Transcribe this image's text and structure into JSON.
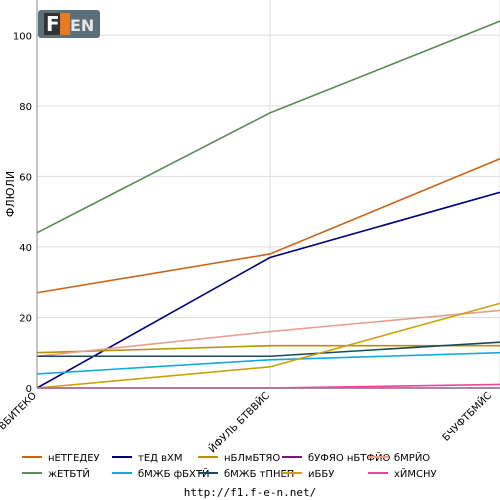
{
  "logo": {
    "text": "F1EN"
  },
  "chart_data": {
    "type": "line",
    "title": "",
    "xlabel": "",
    "ylabel": "ФЛЮЛИ",
    "categories": [
      "ВБИТЕКО",
      "ЙФУЛЬ БТВВЙС",
      "БЧУФТБМЙС"
    ],
    "ylim": [
      0,
      110
    ],
    "yticks": [
      0,
      20,
      40,
      60,
      80,
      100
    ],
    "grid": true,
    "legend_position": "bottom",
    "series": [
      {
        "name": "нЕТГЕДЕУ",
        "color": "#c8661a",
        "values": [
          27,
          38,
          65
        ]
      },
      {
        "name": "тЕД вХМ",
        "color": "#00007a",
        "values": [
          0,
          37,
          55.5
        ]
      },
      {
        "name": "нБЛмБТЯО",
        "color": "#b89000",
        "values": [
          10,
          12,
          12
        ]
      },
      {
        "name": "бУФЯО нБТФЙО",
        "color": "#7a1a80",
        "values": [
          0,
          0,
          0
        ]
      },
      {
        "name": "бМРЙО",
        "color": "#e6a090",
        "values": [
          9,
          16,
          22
        ]
      },
      {
        "name": "жЕТБТЙ",
        "color": "#5a8a5a",
        "values": [
          44,
          78,
          104
        ]
      },
      {
        "name": "бМЖБ фБХТЙ",
        "color": "#10aadf",
        "values": [
          4,
          8,
          10
        ]
      },
      {
        "name": "бМЖБ тПНЕП",
        "color": "#1a4a5a",
        "values": [
          9,
          9,
          13
        ]
      },
      {
        "name": "иББУ",
        "color": "#c8a010",
        "values": [
          0,
          6,
          24
        ]
      },
      {
        "name": "хЙМСНУ",
        "color": "#f040a0",
        "values": [
          0,
          0,
          1
        ]
      }
    ]
  },
  "footer": {
    "url": "http://f1.f-e-n.net/"
  }
}
